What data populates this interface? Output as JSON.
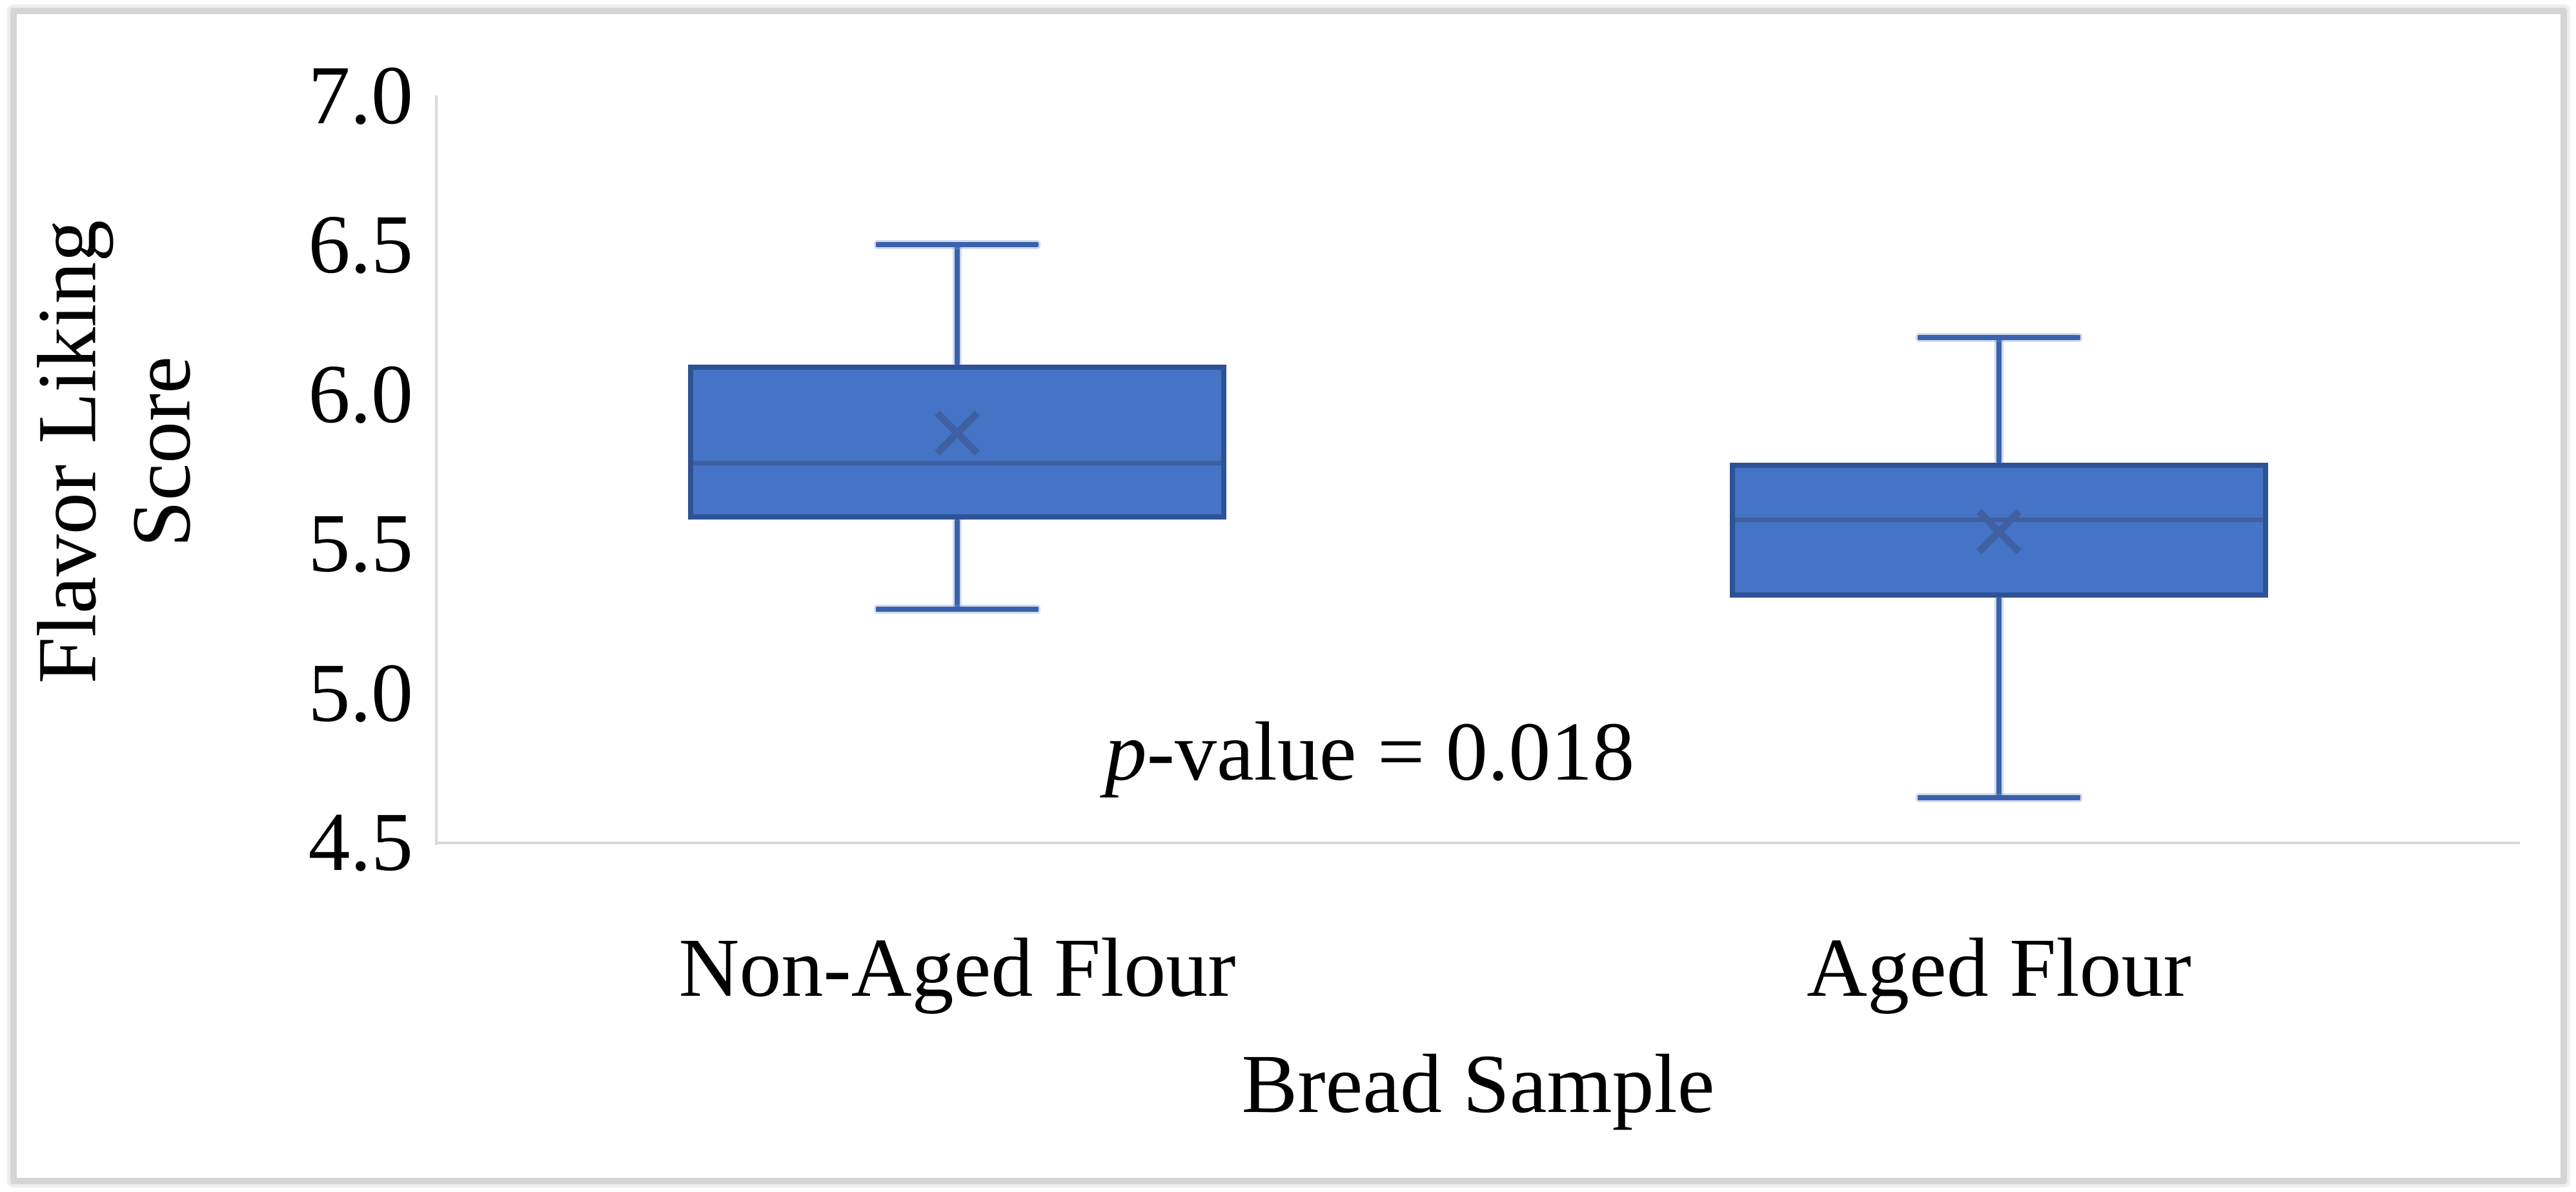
{
  "figure": {
    "frame_color": "#d6d6d6",
    "background": "#ffffff"
  },
  "chart_data": {
    "type": "boxplot",
    "title": "",
    "xlabel": "Bread Sample",
    "ylabel_lines": [
      "Flavor Liking",
      "Score"
    ],
    "categories": [
      "Non-Aged Flour",
      "Aged Flour"
    ],
    "y_axis": {
      "min": 4.5,
      "max": 7.0,
      "tick_step": 0.5,
      "tick_labels": [
        "7.0",
        "6.5",
        "6.0",
        "5.5",
        "5.0",
        "4.5"
      ]
    },
    "series": [
      {
        "name": "Non-Aged Flour",
        "whisker_low": 5.28,
        "q1": 5.58,
        "median": 5.77,
        "mean": 5.87,
        "q3": 6.1,
        "whisker_high": 6.5
      },
      {
        "name": "Aged Flour",
        "whisker_low": 4.65,
        "q1": 5.32,
        "median": 5.58,
        "mean": 5.54,
        "q3": 5.77,
        "whisker_high": 6.19
      }
    ],
    "annotation": {
      "italic": "p",
      "rest": "-value = 0.018"
    },
    "legend": {
      "visible": false
    },
    "grid": false,
    "colors": {
      "box_fill": "#4573c5",
      "box_border": "#2e5395",
      "median_line": "#3f5f9f",
      "whisker": "#3a62ac",
      "mean_marker": "#3f5f9f",
      "axis_line": "#d9d9d9",
      "text": "#000000"
    }
  }
}
